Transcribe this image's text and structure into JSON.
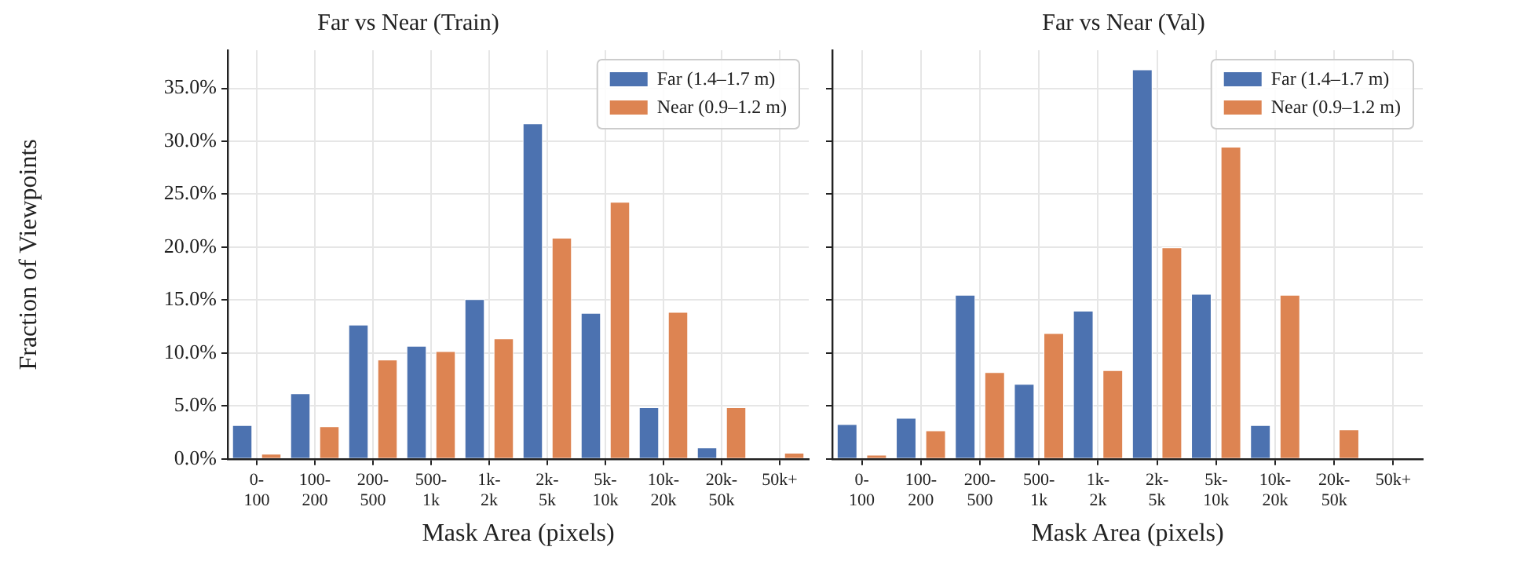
{
  "chart_data": [
    {
      "type": "bar",
      "title": "Far vs Near (Train)",
      "xlabel": "Mask Area (pixels)",
      "ylabel": "Fraction of Viewpoints",
      "categories": [
        "0-100",
        "100-200",
        "200-500",
        "500-1k",
        "1k-2k",
        "2k-5k",
        "5k-10k",
        "10k-20k",
        "20k-50k",
        "50k+"
      ],
      "series": [
        {
          "name": "Far (1.4–1.7 m)",
          "color": "#4c72b0",
          "values": [
            3.2,
            6.2,
            12.7,
            10.7,
            15.1,
            31.7,
            13.8,
            4.9,
            1.1,
            0
          ]
        },
        {
          "name": "Near (0.9–1.2 m)",
          "color": "#dd8452",
          "values": [
            0.5,
            3.1,
            9.4,
            10.2,
            11.4,
            20.9,
            24.3,
            13.9,
            4.9,
            0.6
          ]
        }
      ],
      "ylim": [
        0,
        38.6
      ],
      "yticks": [
        {
          "value": 0,
          "label": "0.0%"
        },
        {
          "value": 5,
          "label": "5.0%"
        },
        {
          "value": 10,
          "label": "10.0%"
        },
        {
          "value": 15,
          "label": "15.0%"
        },
        {
          "value": 20,
          "label": "20.0%"
        },
        {
          "value": 25,
          "label": "25.0%"
        },
        {
          "value": 30,
          "label": "30.0%"
        },
        {
          "value": 35,
          "label": "35.0%"
        }
      ],
      "grid": true,
      "legend": "top right"
    },
    {
      "type": "bar",
      "title": "Far vs Near (Val)",
      "xlabel": "Mask Area (pixels)",
      "categories": [
        "0-100",
        "100-200",
        "200-500",
        "500-1k",
        "1k-2k",
        "2k-5k",
        "5k-10k",
        "10k-20k",
        "20k-50k",
        "50k+"
      ],
      "series": [
        {
          "name": "Far (1.4–1.7 m)",
          "color": "#4c72b0",
          "values": [
            3.3,
            3.9,
            15.5,
            7.1,
            14.0,
            36.8,
            15.6,
            3.2,
            0,
            0
          ]
        },
        {
          "name": "Near (0.9–1.2 m)",
          "color": "#dd8452",
          "values": [
            0.4,
            2.7,
            8.2,
            11.9,
            8.4,
            20.0,
            29.5,
            15.5,
            2.8,
            0
          ]
        }
      ],
      "ylim": [
        0,
        38.6
      ],
      "yticks": [
        {
          "value": 0,
          "label": null
        },
        {
          "value": 5,
          "label": null
        },
        {
          "value": 10,
          "label": null
        },
        {
          "value": 15,
          "label": null
        },
        {
          "value": 20,
          "label": null
        },
        {
          "value": 25,
          "label": null
        },
        {
          "value": 30,
          "label": null
        },
        {
          "value": 35,
          "label": null
        }
      ],
      "grid": true,
      "legend": "top right",
      "tick_labels": "x"
    }
  ]
}
